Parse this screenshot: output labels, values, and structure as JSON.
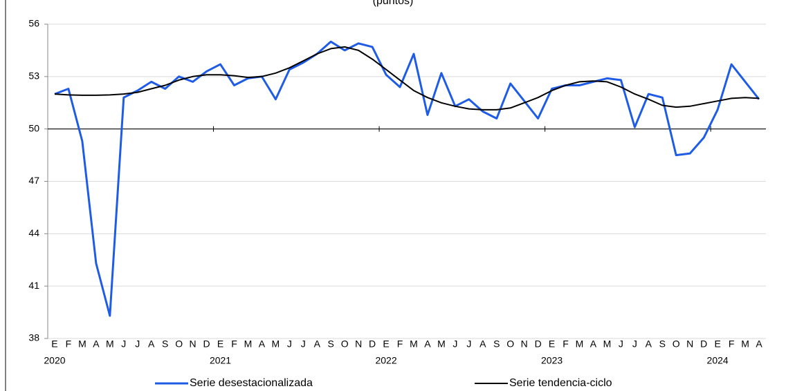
{
  "chart_data": {
    "type": "line",
    "title": "(puntos)",
    "categories": [
      "E",
      "F",
      "M",
      "A",
      "M",
      "J",
      "J",
      "A",
      "S",
      "O",
      "N",
      "D",
      "E",
      "F",
      "M",
      "A",
      "M",
      "J",
      "J",
      "A",
      "S",
      "O",
      "N",
      "D",
      "E",
      "F",
      "M",
      "A",
      "M",
      "J",
      "J",
      "A",
      "S",
      "O",
      "N",
      "D",
      "E",
      "F",
      "M",
      "A",
      "M",
      "J",
      "J",
      "A",
      "S",
      "O",
      "N",
      "D",
      "E",
      "F",
      "M",
      "A"
    ],
    "years": [
      "2020",
      "2021",
      "2022",
      "2023",
      "2024"
    ],
    "series": [
      {
        "name": "Serie desestacionalizada",
        "color": "#1f5ce6",
        "width": 3,
        "values": [
          52.0,
          52.3,
          49.3,
          42.3,
          39.3,
          51.8,
          52.2,
          52.7,
          52.3,
          53.0,
          52.7,
          53.3,
          53.7,
          52.5,
          52.9,
          53.0,
          51.7,
          53.4,
          53.8,
          54.3,
          55.0,
          54.5,
          54.9,
          54.7,
          53.1,
          52.4,
          54.3,
          50.8,
          53.2,
          51.3,
          51.7,
          51.0,
          50.6,
          52.6,
          51.6,
          50.6,
          52.3,
          52.5,
          52.5,
          52.7,
          52.9,
          52.8,
          50.1,
          52.0,
          51.8,
          48.5,
          48.6,
          49.5,
          51.1,
          53.7,
          52.7,
          51.7
        ]
      },
      {
        "name": "Serie tendencia-ciclo",
        "color": "#000000",
        "width": 2,
        "values": [
          52.0,
          51.95,
          51.93,
          51.93,
          51.95,
          52.0,
          52.1,
          52.3,
          52.5,
          52.8,
          53.0,
          53.1,
          53.1,
          53.05,
          52.95,
          53.0,
          53.2,
          53.5,
          53.9,
          54.3,
          54.6,
          54.7,
          54.5,
          54.0,
          53.4,
          52.8,
          52.2,
          51.8,
          51.5,
          51.3,
          51.15,
          51.1,
          51.1,
          51.2,
          51.5,
          51.8,
          52.2,
          52.5,
          52.7,
          52.75,
          52.7,
          52.4,
          52.0,
          51.7,
          51.35,
          51.25,
          51.3,
          51.45,
          51.6,
          51.75,
          51.8,
          51.75
        ]
      }
    ],
    "ylim": [
      38,
      56
    ],
    "yticks": [
      38,
      41,
      44,
      47,
      50,
      53,
      56
    ],
    "grid": true,
    "baseline": 50,
    "legend": "bottom"
  }
}
